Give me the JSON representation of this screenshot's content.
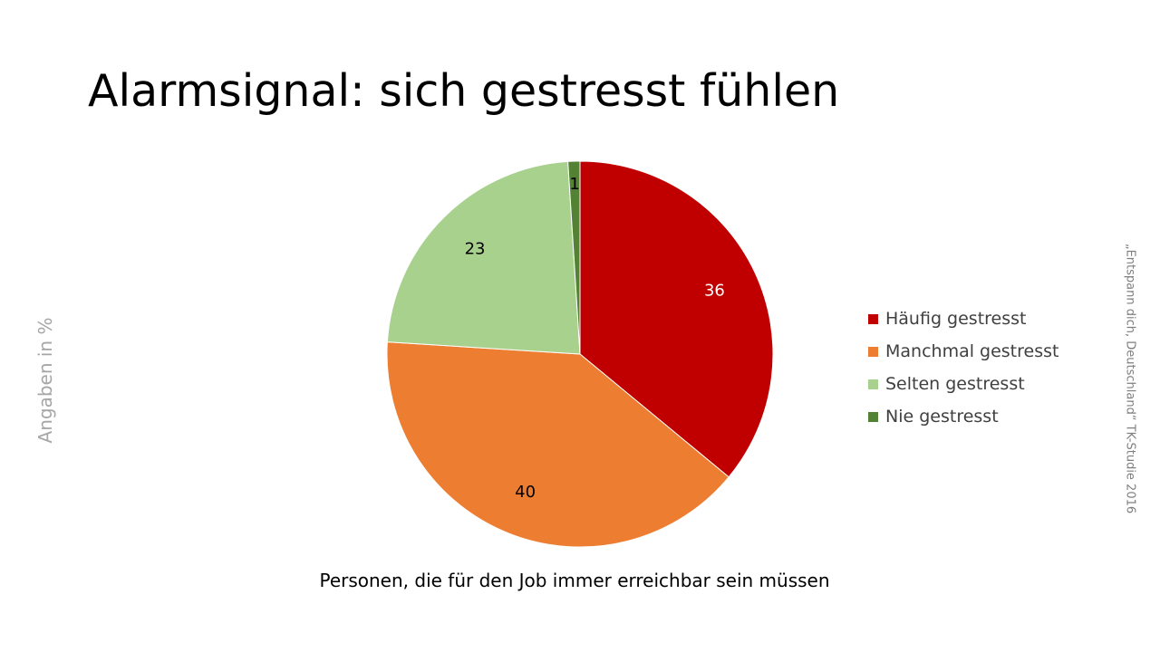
{
  "slide": {
    "title": "Alarmsignal: sich gestresst fühlen",
    "y_note": "Angaben in %",
    "source_note": "„Entspann dich, Deutschland“ TK-Studie 2016",
    "caption": "Personen, die für den Job immer erreichbar sein müssen"
  },
  "chart_data": {
    "type": "pie",
    "title": "",
    "start_angle_deg": 0,
    "direction": "clockwise",
    "legend_position": "right",
    "slices": [
      {
        "name": "Häufig gestresst",
        "value": 36,
        "label": "36",
        "color": "#c00000",
        "label_color": "#ffffff"
      },
      {
        "name": "Manchmal gestresst",
        "value": 40,
        "label": "40",
        "color": "#ed7d31",
        "label_color": "#000000"
      },
      {
        "name": "Selten gestresst",
        "value": 23,
        "label": "23",
        "color": "#a9d18e",
        "label_color": "#000000"
      },
      {
        "name": "Nie gestresst",
        "value": 1,
        "label": "1",
        "color": "#548235",
        "label_color": "#000000"
      }
    ]
  }
}
